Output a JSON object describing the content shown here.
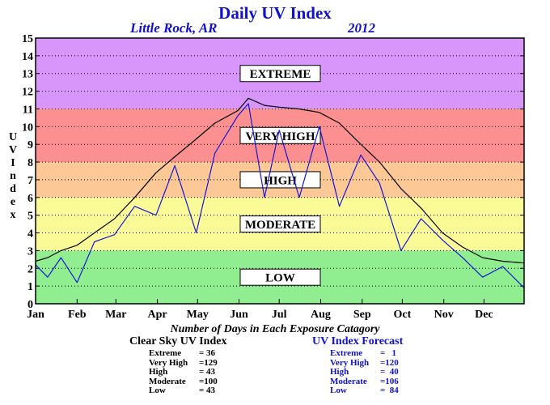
{
  "chart_data": {
    "type": "line",
    "title": "Daily UV Index",
    "location": "Little Rock, AR",
    "year": "2012",
    "ylabel": "UV Index",
    "ylim": [
      0,
      15
    ],
    "yticks": [
      "0",
      "1",
      "2",
      "3",
      "4",
      "5",
      "6",
      "7",
      "8",
      "9",
      "10",
      "11",
      "12",
      "13",
      "14",
      "15"
    ],
    "xlim": [
      1,
      366
    ],
    "month_ticks": [
      "Jan",
      "Feb",
      "Mar",
      "Apr",
      "May",
      "Jun",
      "Jul",
      "Aug",
      "Sep",
      "Oct",
      "Nov",
      "Dec"
    ],
    "grid": "dotted horizontal",
    "bands": [
      {
        "label": "LOW",
        "min": 0,
        "max": 3,
        "color": "#90ee90"
      },
      {
        "label": "MODERATE",
        "min": 3,
        "max": 6,
        "color": "#fafa96"
      },
      {
        "label": "HIGH",
        "min": 6,
        "max": 8,
        "color": "#fcc896"
      },
      {
        "label": "VERY HIGH",
        "min": 8,
        "max": 11,
        "color": "#fc9090"
      },
      {
        "label": "EXTREME",
        "min": 11,
        "max": 15,
        "color": "#d896fa"
      }
    ],
    "series": [
      {
        "color": "#000000",
        "points": [
          [
            1,
            2.4
          ],
          [
            10,
            2.6
          ],
          [
            20,
            3.0
          ],
          [
            32,
            3.3
          ],
          [
            45,
            4.0
          ],
          [
            60,
            4.8
          ],
          [
            75,
            6.0
          ],
          [
            91,
            7.4
          ],
          [
            105,
            8.3
          ],
          [
            121,
            9.3
          ],
          [
            135,
            10.2
          ],
          [
            152,
            10.9
          ],
          [
            160,
            11.6
          ],
          [
            172,
            11.2
          ],
          [
            183,
            11.1
          ],
          [
            198,
            11.0
          ],
          [
            213,
            10.8
          ],
          [
            228,
            10.2
          ],
          [
            244,
            9.0
          ],
          [
            258,
            8.0
          ],
          [
            274,
            6.5
          ],
          [
            289,
            5.4
          ],
          [
            305,
            4.0
          ],
          [
            320,
            3.2
          ],
          [
            335,
            2.6
          ],
          [
            350,
            2.4
          ],
          [
            366,
            2.3
          ]
        ]
      },
      {
        "color": "#1515d8",
        "points": [
          [
            1,
            2.2
          ],
          [
            10,
            1.5
          ],
          [
            20,
            2.6
          ],
          [
            32,
            1.2
          ],
          [
            45,
            3.5
          ],
          [
            60,
            3.9
          ],
          [
            75,
            5.5
          ],
          [
            91,
            5.0
          ],
          [
            105,
            7.8
          ],
          [
            121,
            4.0
          ],
          [
            135,
            8.5
          ],
          [
            152,
            10.6
          ],
          [
            160,
            11.3
          ],
          [
            172,
            6.0
          ],
          [
            183,
            9.8
          ],
          [
            198,
            6.0
          ],
          [
            213,
            10.0
          ],
          [
            228,
            5.5
          ],
          [
            244,
            8.4
          ],
          [
            258,
            6.8
          ],
          [
            274,
            3.0
          ],
          [
            289,
            4.8
          ],
          [
            305,
            3.6
          ],
          [
            320,
            2.6
          ],
          [
            335,
            1.5
          ],
          [
            350,
            2.1
          ],
          [
            366,
            0.9
          ]
        ]
      }
    ]
  },
  "summary": {
    "heading": "Number of Days in Each Exposure Catagory",
    "clear_sky": {
      "title": "Clear Sky UV Index",
      "rows": [
        {
          "name": "Extreme",
          "value": "= 36"
        },
        {
          "name": "Very High",
          "value": "=129"
        },
        {
          "name": "High",
          "value": "= 43"
        },
        {
          "name": "Moderate",
          "value": "=100"
        },
        {
          "name": "Low",
          "value": "= 43"
        }
      ]
    },
    "forecast": {
      "title": "UV Index Forecast",
      "rows": [
        {
          "name": "Extreme",
          "value": "=   1"
        },
        {
          "name": "Very High",
          "value": "=120"
        },
        {
          "name": "High",
          "value": "=  40"
        },
        {
          "name": "Moderate",
          "value": "=106"
        },
        {
          "name": "Low",
          "value": "=  84"
        }
      ]
    }
  }
}
